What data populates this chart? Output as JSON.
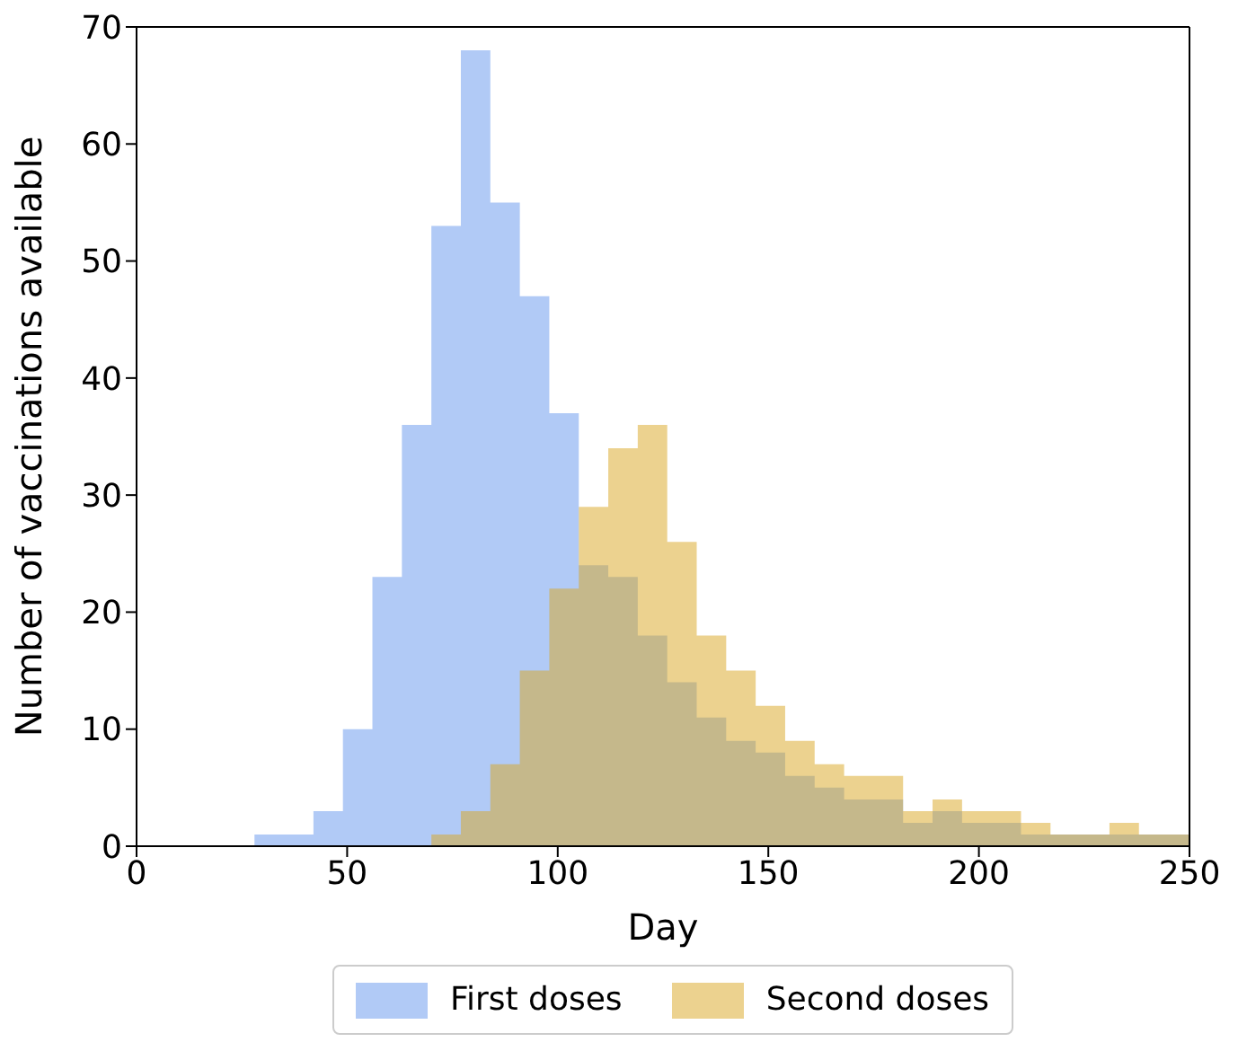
{
  "chart_data": {
    "type": "histogram",
    "xlabel": "Day",
    "ylabel": "Number of vaccinations available",
    "bins": [
      0,
      7,
      14,
      21,
      28,
      35,
      42,
      49,
      56,
      63,
      70,
      77,
      84,
      91,
      98,
      105,
      112,
      119,
      126,
      133,
      140,
      147,
      154,
      161,
      168,
      175,
      182,
      189,
      196,
      203,
      210,
      217,
      224,
      231,
      238,
      245,
      250
    ],
    "series": [
      {
        "name": "First doses",
        "color": "#6495ed",
        "values": [
          0,
          0,
          0,
          0,
          1,
          1,
          3,
          10,
          23,
          36,
          53,
          68,
          55,
          47,
          37,
          24,
          23,
          18,
          14,
          11,
          9,
          8,
          6,
          5,
          4,
          4,
          2,
          3,
          2,
          2,
          1,
          1,
          1,
          1,
          1,
          1
        ]
      },
      {
        "name": "Second doses",
        "color": "#daa520",
        "values": [
          0,
          0,
          0,
          0,
          0,
          0,
          0,
          0,
          0,
          0,
          1,
          3,
          7,
          15,
          22,
          29,
          34,
          36,
          26,
          18,
          15,
          12,
          9,
          7,
          6,
          6,
          3,
          4,
          3,
          3,
          2,
          1,
          1,
          2,
          1,
          1
        ]
      }
    ],
    "xlim": [
      0,
      250
    ],
    "xticks": [
      0,
      50,
      100,
      150,
      200,
      250
    ],
    "ylim": [
      0,
      70
    ],
    "yticks": [
      0,
      10,
      20,
      30,
      40,
      50,
      60,
      70
    ],
    "legend": "bottom"
  }
}
